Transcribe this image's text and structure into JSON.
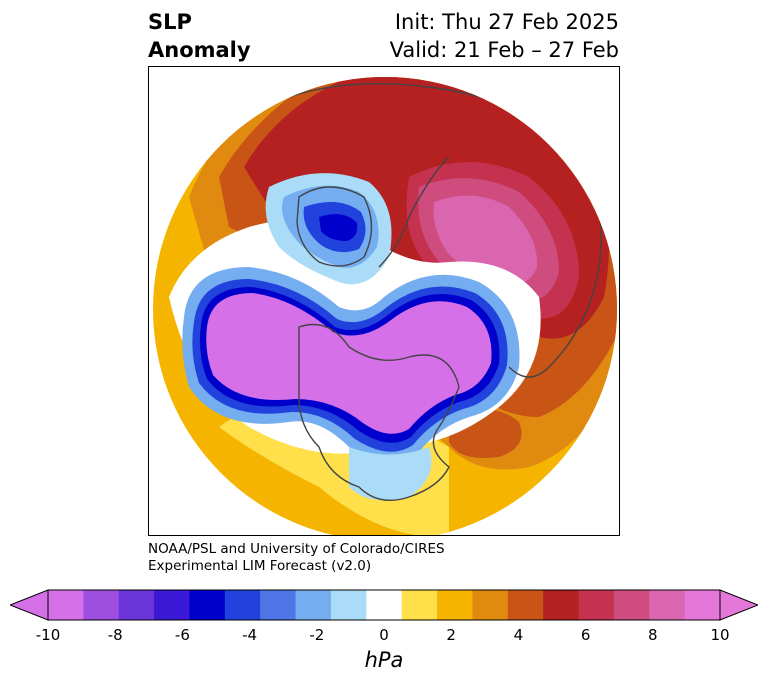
{
  "header": {
    "title_line1": "SLP",
    "title_line2": "Anomaly",
    "init": "Init: Thu 27 Feb 2025",
    "valid": "Valid: 21 Feb – 27 Feb"
  },
  "credit": {
    "line1": "NOAA/PSL and University of Colorado/CIRES",
    "line2": "Experimental LIM Forecast (v2.0)"
  },
  "colorbar": {
    "units": "hPa",
    "tick_labels": [
      "-10",
      "-8",
      "-6",
      "-4",
      "-2",
      "0",
      "2",
      "4",
      "6",
      "8",
      "10"
    ],
    "colors": [
      "#d670e8",
      "#9e4fdf",
      "#6a34d9",
      "#3a18d6",
      "#0000cc",
      "#2142dc",
      "#4f76e6",
      "#74aef0",
      "#aadcf8",
      "#ffffff",
      "#ffe04a",
      "#f4b400",
      "#e08a10",
      "#c85416",
      "#b52020",
      "#c43250",
      "#cf4c7e",
      "#da66b0",
      "#e477d8"
    ],
    "extend_low_color": "#d670e8",
    "extend_high_color": "#e477d8"
  }
}
